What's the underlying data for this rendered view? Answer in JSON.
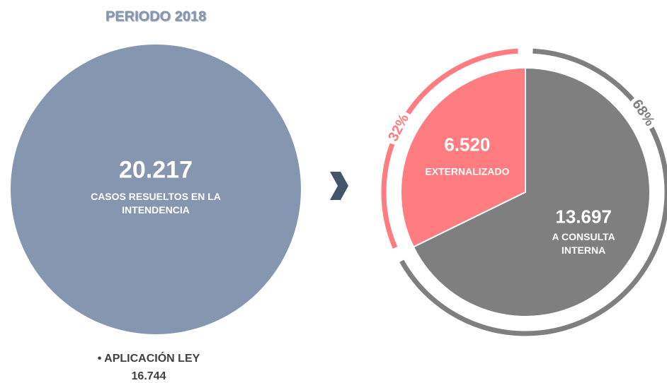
{
  "header": {
    "title": "PERIODO 2018"
  },
  "total": {
    "value": "20.217",
    "label": "CASOS RESUELTOS EN LA INTENDENCIA"
  },
  "chart_data": {
    "type": "pie",
    "categories": [
      "EXTERNALIZADO",
      "A CONSULTA INTERNA"
    ],
    "values": [
      6520,
      13697
    ],
    "value_labels": [
      "6.520",
      "13.697"
    ],
    "percent_labels": [
      "32%",
      "68%"
    ],
    "colors": [
      "#ff7c80",
      "#7f7f7f"
    ]
  },
  "footer": {
    "label": "APLICACIÓN LEY",
    "value": "16.744"
  }
}
